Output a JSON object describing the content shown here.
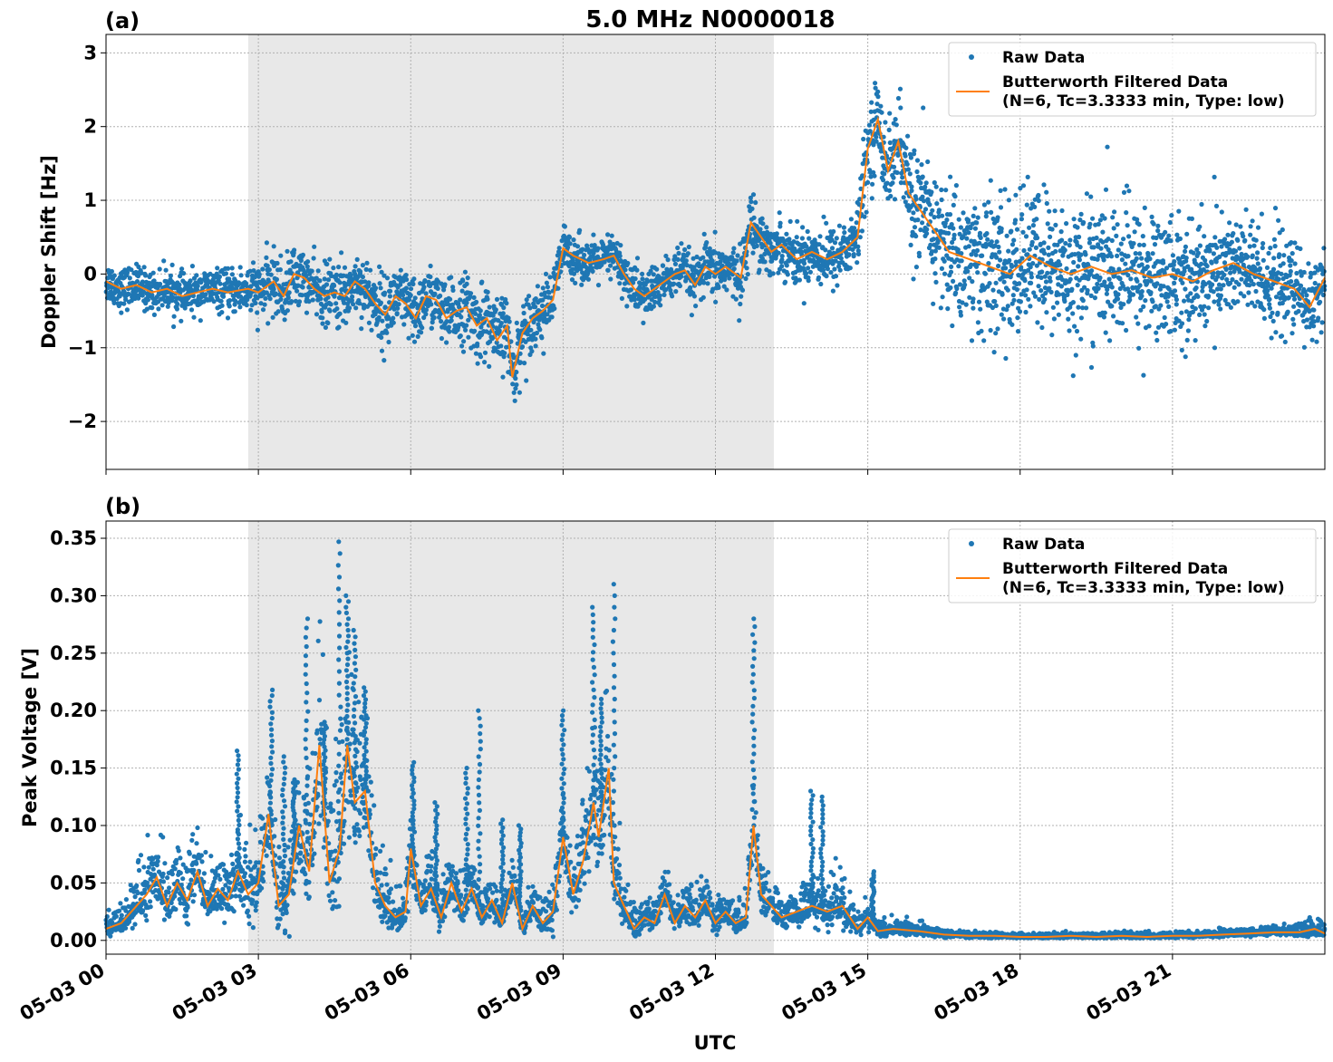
{
  "figure": {
    "title": "5.0 MHz N0000018",
    "xlabel": "UTC"
  },
  "legend": {
    "raw_label": "Raw Data",
    "filtered_label_line1": "Butterworth Filtered Data",
    "filtered_label_line2": "(N=6, Tc=3.3333 min, Type: low)"
  },
  "colors": {
    "raw": "#1f77b4",
    "filtered": "#ff7f0e",
    "shade": "#e8e8e8",
    "grid": "#b0b0b0"
  },
  "chart_data": [
    {
      "type": "scatter",
      "panel_label": "(a)",
      "title": "5.0 MHz N0000018",
      "ylabel": "Doppler Shift [Hz]",
      "xlabel": "",
      "xlim_hours": [
        0,
        24
      ],
      "ylim": [
        -2.65,
        3.25
      ],
      "yticks": [
        -2,
        -1,
        0,
        1,
        2,
        3
      ],
      "ytick_labels": [
        "−2",
        "−1",
        "0",
        "1",
        "2",
        "3"
      ],
      "shaded_interval_hours": [
        2.8,
        13.15
      ],
      "legend_placement": "top-right",
      "grid": true,
      "series": [
        {
          "name": "Butterworth Filtered Data",
          "style": "line",
          "x_hours": [
            0.0,
            0.3,
            0.6,
            0.9,
            1.2,
            1.5,
            1.8,
            2.1,
            2.4,
            2.8,
            3.0,
            3.3,
            3.5,
            3.7,
            3.9,
            4.1,
            4.3,
            4.5,
            4.7,
            4.9,
            5.1,
            5.3,
            5.5,
            5.7,
            5.9,
            6.1,
            6.3,
            6.5,
            6.7,
            6.9,
            7.1,
            7.3,
            7.5,
            7.7,
            7.9,
            8.0,
            8.2,
            8.4,
            8.6,
            8.8,
            9.0,
            9.2,
            9.5,
            9.8,
            10.0,
            10.2,
            10.4,
            10.6,
            10.8,
            11.0,
            11.2,
            11.4,
            11.6,
            11.8,
            12.0,
            12.2,
            12.5,
            12.7,
            12.9,
            13.1,
            13.3,
            13.6,
            13.9,
            14.2,
            14.5,
            14.8,
            15.0,
            15.2,
            15.4,
            15.6,
            15.8,
            16.0,
            16.3,
            16.6,
            17.0,
            17.4,
            17.8,
            18.2,
            18.6,
            19.0,
            19.4,
            19.8,
            20.2,
            20.6,
            21.0,
            21.4,
            21.8,
            22.2,
            22.6,
            23.0,
            23.4,
            23.7,
            24.0
          ],
          "y": [
            -0.1,
            -0.2,
            -0.15,
            -0.25,
            -0.2,
            -0.3,
            -0.25,
            -0.2,
            -0.25,
            -0.2,
            -0.25,
            -0.1,
            -0.3,
            0.0,
            -0.05,
            -0.2,
            -0.3,
            -0.25,
            -0.3,
            -0.1,
            -0.2,
            -0.4,
            -0.55,
            -0.3,
            -0.4,
            -0.6,
            -0.3,
            -0.35,
            -0.6,
            -0.5,
            -0.45,
            -0.7,
            -0.6,
            -0.9,
            -0.7,
            -1.4,
            -0.8,
            -0.6,
            -0.5,
            -0.35,
            0.35,
            0.25,
            0.15,
            0.2,
            0.25,
            0.0,
            -0.2,
            -0.3,
            -0.2,
            -0.1,
            0.0,
            0.05,
            -0.15,
            0.1,
            0.0,
            0.1,
            -0.05,
            0.7,
            0.5,
            0.3,
            0.4,
            0.2,
            0.3,
            0.2,
            0.3,
            0.5,
            1.7,
            2.1,
            1.4,
            1.8,
            1.1,
            0.9,
            0.6,
            0.3,
            0.2,
            0.1,
            0.0,
            0.25,
            0.1,
            0.0,
            0.1,
            0.0,
            0.05,
            -0.05,
            0.0,
            -0.1,
            0.05,
            0.15,
            0.0,
            -0.1,
            -0.2,
            -0.45,
            -0.05
          ]
        },
        {
          "name": "Raw Data",
          "style": "markers",
          "spread": [
            0.3,
            0.3,
            0.3,
            0.3,
            0.3,
            0.3,
            0.3,
            0.3,
            0.3,
            0.4,
            0.4,
            0.45,
            0.45,
            0.45,
            0.4,
            0.4,
            0.45,
            0.5,
            0.5,
            0.45,
            0.45,
            0.5,
            0.55,
            0.5,
            0.5,
            0.5,
            0.45,
            0.45,
            0.5,
            0.5,
            0.5,
            0.55,
            0.55,
            0.55,
            0.5,
            0.5,
            0.5,
            0.45,
            0.45,
            0.4,
            0.35,
            0.35,
            0.3,
            0.3,
            0.35,
            0.35,
            0.4,
            0.4,
            0.35,
            0.35,
            0.35,
            0.35,
            0.35,
            0.4,
            0.4,
            0.4,
            0.4,
            0.45,
            0.45,
            0.4,
            0.4,
            0.4,
            0.45,
            0.45,
            0.45,
            0.5,
            0.6,
            0.65,
            0.65,
            0.7,
            0.8,
            0.9,
            0.9,
            1.0,
            1.05,
            1.05,
            1.05,
            1.05,
            1.05,
            1.0,
            1.0,
            1.0,
            1.0,
            0.95,
            0.95,
            0.9,
            0.85,
            0.8,
            0.8,
            0.75,
            0.7,
            0.65,
            0.6
          ]
        }
      ]
    },
    {
      "type": "scatter",
      "panel_label": "(b)",
      "title": "",
      "ylabel": "Peak Voltage [V]",
      "xlabel": "UTC",
      "xlim_hours": [
        0,
        24
      ],
      "ylim": [
        -0.012,
        0.365
      ],
      "yticks": [
        0.0,
        0.05,
        0.1,
        0.15,
        0.2,
        0.25,
        0.3,
        0.35
      ],
      "ytick_labels": [
        "0.00",
        "0.05",
        "0.10",
        "0.15",
        "0.20",
        "0.25",
        "0.30",
        "0.35"
      ],
      "xticks_hours": [
        0,
        3,
        6,
        9,
        12,
        15,
        18,
        21
      ],
      "xtick_labels": [
        "05-03 00",
        "05-03 03",
        "05-03 06",
        "05-03 09",
        "05-03 12",
        "05-03 15",
        "05-03 18",
        "05-03 21"
      ],
      "shaded_interval_hours": [
        2.8,
        13.15
      ],
      "legend_placement": "top-right",
      "grid": true,
      "series": [
        {
          "name": "Butterworth Filtered Data",
          "style": "line",
          "x_hours": [
            0.0,
            0.3,
            0.5,
            0.8,
            1.0,
            1.2,
            1.4,
            1.6,
            1.8,
            2.0,
            2.2,
            2.4,
            2.6,
            2.8,
            3.0,
            3.2,
            3.4,
            3.6,
            3.8,
            4.0,
            4.2,
            4.4,
            4.6,
            4.75,
            4.9,
            5.1,
            5.3,
            5.5,
            5.7,
            5.9,
            6.0,
            6.2,
            6.4,
            6.6,
            6.8,
            7.0,
            7.2,
            7.4,
            7.6,
            7.8,
            8.0,
            8.2,
            8.4,
            8.6,
            8.8,
            9.0,
            9.2,
            9.4,
            9.6,
            9.7,
            9.9,
            10.0,
            10.2,
            10.4,
            10.6,
            10.8,
            11.0,
            11.2,
            11.4,
            11.6,
            11.8,
            12.0,
            12.2,
            12.4,
            12.6,
            12.75,
            12.9,
            13.1,
            13.3,
            13.6,
            13.9,
            14.2,
            14.5,
            14.8,
            15.0,
            15.2,
            15.5,
            16.0,
            16.5,
            17.0,
            17.5,
            18.0,
            18.5,
            19.0,
            19.5,
            20.0,
            20.5,
            21.0,
            21.5,
            22.0,
            22.5,
            23.0,
            23.5,
            23.8,
            24.0
          ],
          "y": [
            0.01,
            0.015,
            0.025,
            0.04,
            0.055,
            0.03,
            0.05,
            0.035,
            0.06,
            0.03,
            0.045,
            0.035,
            0.06,
            0.04,
            0.05,
            0.11,
            0.03,
            0.04,
            0.1,
            0.06,
            0.17,
            0.05,
            0.08,
            0.17,
            0.12,
            0.13,
            0.05,
            0.03,
            0.02,
            0.025,
            0.08,
            0.03,
            0.045,
            0.02,
            0.05,
            0.025,
            0.045,
            0.02,
            0.035,
            0.015,
            0.05,
            0.01,
            0.03,
            0.015,
            0.025,
            0.09,
            0.04,
            0.07,
            0.12,
            0.09,
            0.15,
            0.05,
            0.03,
            0.01,
            0.02,
            0.015,
            0.04,
            0.015,
            0.03,
            0.02,
            0.035,
            0.015,
            0.025,
            0.015,
            0.02,
            0.1,
            0.04,
            0.03,
            0.02,
            0.025,
            0.03,
            0.025,
            0.03,
            0.01,
            0.02,
            0.008,
            0.01,
            0.008,
            0.005,
            0.004,
            0.004,
            0.003,
            0.003,
            0.004,
            0.003,
            0.004,
            0.003,
            0.004,
            0.004,
            0.005,
            0.006,
            0.007,
            0.007,
            0.01,
            0.006
          ]
        },
        {
          "name": "Raw Data",
          "style": "markers",
          "spread": [
            0.01,
            0.01,
            0.02,
            0.03,
            0.03,
            0.03,
            0.03,
            0.03,
            0.03,
            0.03,
            0.03,
            0.03,
            0.035,
            0.04,
            0.04,
            0.045,
            0.04,
            0.045,
            0.05,
            0.07,
            0.08,
            0.07,
            0.07,
            0.08,
            0.07,
            0.06,
            0.04,
            0.03,
            0.02,
            0.02,
            0.035,
            0.025,
            0.03,
            0.02,
            0.025,
            0.02,
            0.025,
            0.02,
            0.02,
            0.015,
            0.02,
            0.015,
            0.02,
            0.015,
            0.02,
            0.04,
            0.03,
            0.05,
            0.07,
            0.07,
            0.07,
            0.04,
            0.025,
            0.015,
            0.015,
            0.015,
            0.02,
            0.015,
            0.02,
            0.015,
            0.02,
            0.015,
            0.015,
            0.015,
            0.015,
            0.04,
            0.025,
            0.02,
            0.02,
            0.02,
            0.025,
            0.02,
            0.025,
            0.01,
            0.015,
            0.008,
            0.008,
            0.006,
            0.004,
            0.003,
            0.003,
            0.003,
            0.003,
            0.003,
            0.003,
            0.003,
            0.003,
            0.003,
            0.003,
            0.004,
            0.004,
            0.005,
            0.006,
            0.008,
            0.008
          ],
          "spikes": [
            [
              2.6,
              0.165
            ],
            [
              3.25,
              0.218
            ],
            [
              3.5,
              0.16
            ],
            [
              3.7,
              0.14
            ],
            [
              3.95,
              0.28
            ],
            [
              4.3,
              0.19
            ],
            [
              4.6,
              0.347
            ],
            [
              4.75,
              0.3
            ],
            [
              4.9,
              0.27
            ],
            [
              5.1,
              0.22
            ],
            [
              6.05,
              0.155
            ],
            [
              6.5,
              0.12
            ],
            [
              7.1,
              0.15
            ],
            [
              7.35,
              0.2
            ],
            [
              7.8,
              0.105
            ],
            [
              8.15,
              0.1
            ],
            [
              9.0,
              0.2
            ],
            [
              9.6,
              0.29
            ],
            [
              9.75,
              0.21
            ],
            [
              10.0,
              0.31
            ],
            [
              12.75,
              0.28
            ],
            [
              13.9,
              0.13
            ],
            [
              14.1,
              0.125
            ],
            [
              15.1,
              0.06
            ]
          ]
        }
      ]
    }
  ]
}
